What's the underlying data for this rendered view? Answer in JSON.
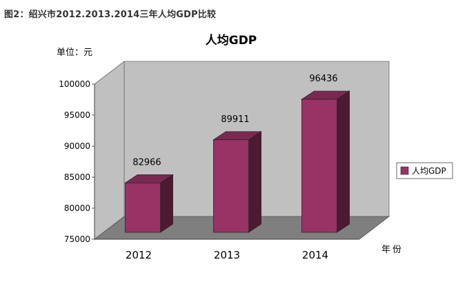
{
  "figure_caption": "图2：绍兴市2012.2013.2014三年人均GDP比较",
  "colors": {
    "bar_front": "#993366",
    "bar_side": "#4d1a33",
    "bar_top": "#7a2952",
    "wall": "#c0c0c0",
    "floor": "#7f7f7f",
    "page_background": "#ffffff"
  },
  "chart_data": {
    "type": "bar",
    "style": "3d-column",
    "title": "人均GDP",
    "unit_label": "单位：元",
    "xlabel": "年份",
    "ylabel": "",
    "categories": [
      "2012",
      "2013",
      "2014"
    ],
    "series": [
      {
        "name": "人均GDP",
        "values": [
          82966,
          89911,
          96436
        ]
      }
    ],
    "data_labels": [
      "82966",
      "89911",
      "96436"
    ],
    "ylim": [
      75000,
      100000
    ],
    "yticks": [
      75000,
      80000,
      85000,
      90000,
      95000,
      100000
    ],
    "ytick_labels": [
      "75000",
      "80000",
      "85000",
      "90000",
      "95000",
      "100000"
    ],
    "grid": false,
    "legend": {
      "position": "right",
      "entries": [
        "人均GDP"
      ]
    }
  }
}
